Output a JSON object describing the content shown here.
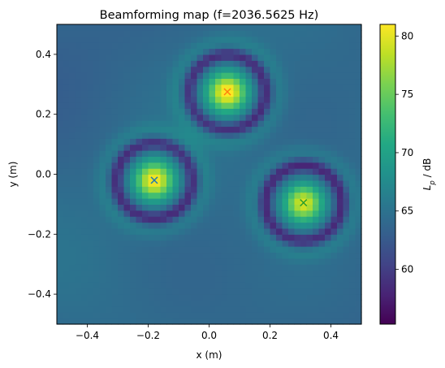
{
  "chart_data": {
    "type": "heatmap",
    "title": "Beamforming map (f=2036.5625 Hz)",
    "xlabel": "x (m)",
    "ylabel": "y (m)",
    "xlim": [
      -0.5,
      0.5
    ],
    "ylim": [
      -0.5,
      0.5
    ],
    "grid_resolution": 0.02,
    "xticks": [
      -0.4,
      -0.2,
      0.0,
      0.2,
      0.4
    ],
    "yticks": [
      -0.4,
      -0.2,
      0.0,
      0.2,
      0.4
    ],
    "xtick_labels": [
      "−0.4",
      "−0.2",
      "0.0",
      "0.2",
      "0.4"
    ],
    "ytick_labels": [
      "−0.4",
      "−0.2",
      "0.0",
      "0.2",
      "0.4"
    ],
    "colormap": "viridis",
    "colorbar": {
      "label_text": "L_p / dB",
      "label_main": "L",
      "label_sub": "p",
      "label_rest": " / dB",
      "range": [
        55.3,
        81.0
      ],
      "ticks": [
        60,
        65,
        70,
        75,
        80
      ],
      "tick_labels": [
        "60",
        "65",
        "70",
        "75",
        "80"
      ]
    },
    "sources": [
      {
        "x": 0.06,
        "y": 0.275,
        "level": 81.0,
        "marker": "x",
        "marker_color": "#ff7f0e"
      },
      {
        "x": -0.18,
        "y": -0.02,
        "level": 80.5,
        "marker": "x",
        "marker_color": "#1f77b4"
      },
      {
        "x": 0.31,
        "y": -0.095,
        "level": 79.5,
        "marker": "x",
        "marker_color": "#2ca02c"
      }
    ],
    "background_level": 64.0
  }
}
